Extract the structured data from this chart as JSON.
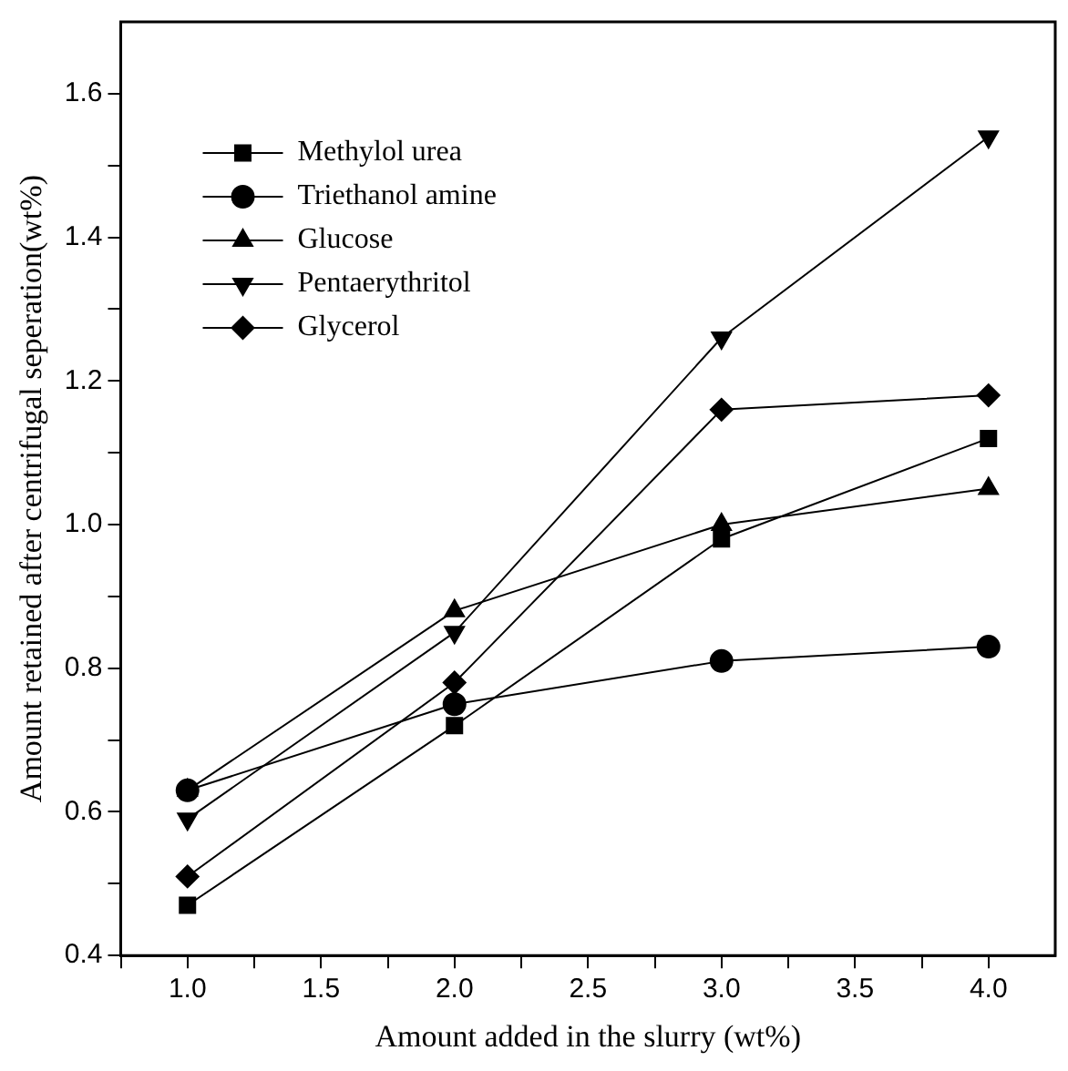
{
  "chart_data": {
    "type": "line",
    "xlabel": "Amount added in the slurry (wt%)",
    "ylabel": "Amount retained after centrifugal seperation(wt%)",
    "x": [
      1.0,
      2.0,
      3.0,
      4.0
    ],
    "series": [
      {
        "name": "Methylol urea",
        "color": "#000000",
        "marker": "square",
        "values": [
          0.47,
          0.72,
          0.98,
          1.12
        ]
      },
      {
        "name": "Triethanol amine",
        "color": "#000000",
        "marker": "circle",
        "values": [
          0.63,
          0.75,
          0.81,
          0.83
        ]
      },
      {
        "name": "Glucose",
        "color": "#000000",
        "marker": "triangle",
        "values": [
          0.63,
          0.88,
          1.0,
          1.05
        ]
      },
      {
        "name": "Pentaerythritol",
        "color": "#000000",
        "marker": "triangle-down",
        "values": [
          0.59,
          0.85,
          1.26,
          1.54
        ]
      },
      {
        "name": "Glycerol",
        "color": "#000000",
        "marker": "diamond",
        "values": [
          0.51,
          0.78,
          1.16,
          1.18
        ]
      }
    ],
    "xlim": [
      0.75,
      4.25
    ],
    "xticks": [
      {
        "value": 0.75,
        "label": null
      },
      {
        "value": 1.0,
        "label": "1.0"
      },
      {
        "value": 1.25,
        "label": null
      },
      {
        "value": 1.5,
        "label": "1.5"
      },
      {
        "value": 1.75,
        "label": null
      },
      {
        "value": 2.0,
        "label": "2.0"
      },
      {
        "value": 2.25,
        "label": null
      },
      {
        "value": 2.5,
        "label": "2.5"
      },
      {
        "value": 2.75,
        "label": null
      },
      {
        "value": 3.0,
        "label": "3.0"
      },
      {
        "value": 3.25,
        "label": null
      },
      {
        "value": 3.5,
        "label": "3.5"
      },
      {
        "value": 3.75,
        "label": null
      },
      {
        "value": 4.0,
        "label": "4.0"
      }
    ],
    "ylim": [
      0.4,
      1.7
    ],
    "yticks": [
      {
        "value": 0.4,
        "label": "0.4"
      },
      {
        "value": 0.5,
        "label": null
      },
      {
        "value": 0.6,
        "label": "0.6"
      },
      {
        "value": 0.7,
        "label": null
      },
      {
        "value": 0.8,
        "label": "0.8"
      },
      {
        "value": 0.9,
        "label": null
      },
      {
        "value": 1.0,
        "label": "1.0"
      },
      {
        "value": 1.1,
        "label": null
      },
      {
        "value": 1.2,
        "label": "1.2"
      },
      {
        "value": 1.3,
        "label": null
      },
      {
        "value": 1.4,
        "label": "1.4"
      },
      {
        "value": 1.5,
        "label": null
      },
      {
        "value": 1.6,
        "label": "1.6"
      }
    ],
    "grid": false,
    "legend": "top left",
    "line_style": "solid"
  }
}
